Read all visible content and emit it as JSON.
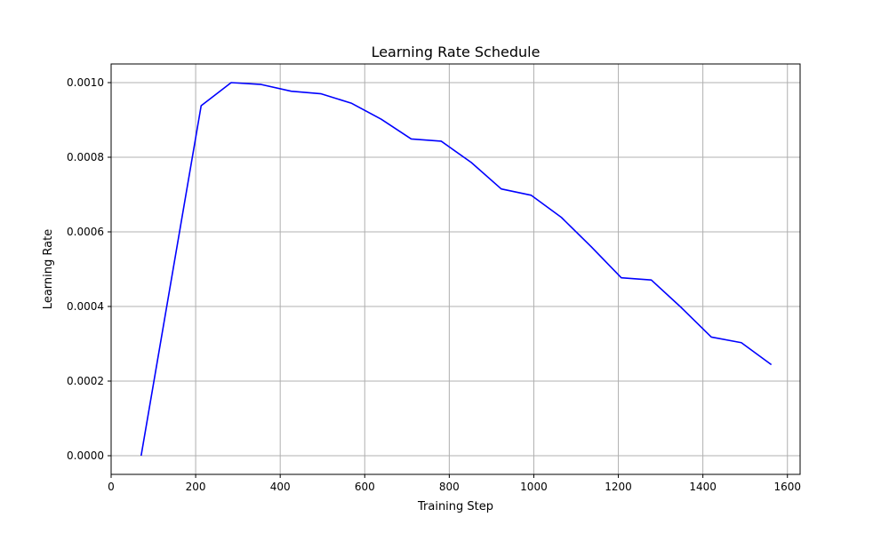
{
  "chart_data": {
    "type": "line",
    "title": "Learning Rate Schedule",
    "xlabel": "Training Step",
    "ylabel": "Learning Rate",
    "xlim": [
      0,
      1630
    ],
    "ylim": [
      -5e-05,
      0.00105
    ],
    "xticks": [
      0,
      200,
      400,
      600,
      800,
      1000,
      1200,
      1400,
      1600
    ],
    "xtick_labels": [
      "0",
      "200",
      "400",
      "600",
      "800",
      "1000",
      "1200",
      "1400",
      "1600"
    ],
    "yticks": [
      0,
      0.0002,
      0.0004,
      0.0006,
      0.0008,
      0.001
    ],
    "ytick_labels": [
      "0.0000",
      "0.0002",
      "0.0004",
      "0.0006",
      "0.0008",
      "0.0010"
    ],
    "grid": true,
    "legend": "none",
    "line_color": "#0000ff",
    "grid_color": "#b0b0b0",
    "series": [
      {
        "x": [
          71,
          213,
          284,
          355,
          426,
          497,
          568,
          639,
          710,
          781,
          852,
          923,
          994,
          1065,
          1136,
          1207,
          1278,
          1349,
          1420,
          1491,
          1562
        ],
        "y": [
          0.0,
          0.000938,
          0.001,
          0.000995,
          0.000977,
          0.00097,
          0.000945,
          0.000902,
          0.000849,
          0.000843,
          0.000786,
          0.000715,
          0.000698,
          0.000639,
          0.00056,
          0.000477,
          0.000471,
          0.000397,
          0.000318,
          0.000303,
          0.000244
        ]
      }
    ]
  }
}
